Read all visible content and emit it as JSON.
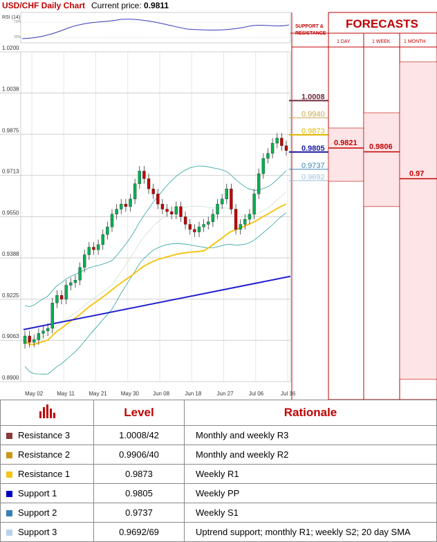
{
  "header": {
    "title": "USD/CHF Daily Chart",
    "price_label": "Current price:",
    "price_value": "0.9811"
  },
  "colors": {
    "accent": "#c00000",
    "bull": "#00b050",
    "bear": "#c00000",
    "sma20": "#f5c518",
    "sma200": "#1f1fd0",
    "bollinger": "#2aa0a0",
    "forecast_fill": "#fde4e6",
    "forecast_line": "#c00000"
  },
  "rsi": {
    "label": "RSI (14)",
    "levels": [
      "70%",
      "30%"
    ]
  },
  "chart_data": {
    "type": "candlestick",
    "ylim": [
      0.89,
      1.02
    ],
    "y_ticks": [
      "1.0200",
      "1.0038",
      "0.9875",
      "0.9713",
      "0.9550",
      "0.9388",
      "0.9225",
      "0.9063",
      "0.8900"
    ],
    "x_ticks": [
      "May 02",
      "May 11",
      "May 21",
      "May 30",
      "Jun 08",
      "Jun 18",
      "Jun 27",
      "Jul 06",
      "Jul 16"
    ],
    "close_series": [
      0.908,
      0.9055,
      0.9065,
      0.909,
      0.91,
      0.911,
      0.921,
      0.924,
      0.9225,
      0.928,
      0.929,
      0.93,
      0.935,
      0.94,
      0.943,
      0.942,
      0.944,
      0.948,
      0.951,
      0.956,
      0.958,
      0.96,
      0.959,
      0.962,
      0.968,
      0.973,
      0.97,
      0.966,
      0.964,
      0.96,
      0.958,
      0.957,
      0.956,
      0.959,
      0.955,
      0.952,
      0.95,
      0.949,
      0.951,
      0.952,
      0.953,
      0.956,
      0.96,
      0.962,
      0.966,
      0.958,
      0.95,
      0.952,
      0.954,
      0.956,
      0.964,
      0.972,
      0.978,
      0.98,
      0.984,
      0.986,
      0.983,
      0.9811
    ],
    "sr_labels": [
      {
        "value": 1.0008,
        "label": "1.0008",
        "color": "#6b2a3a"
      },
      {
        "value": 0.994,
        "label": "0.9940",
        "color": "#c9a64a"
      },
      {
        "value": 0.9873,
        "label": "0.9873",
        "color": "#e0b800"
      },
      {
        "value": 0.9805,
        "label": "0.9805",
        "color": "#1a1aa0"
      },
      {
        "value": 0.9737,
        "label": "0.9737",
        "color": "#3a7fb5"
      },
      {
        "value": 0.9692,
        "label": "0.9692",
        "color": "#9dc0d8"
      }
    ],
    "forecasts": [
      {
        "horizon": "1 DAY",
        "value": 0.9821,
        "label": "0.9821",
        "low": 0.969,
        "high": 0.99
      },
      {
        "horizon": "1 WEEK",
        "value": 0.9806,
        "label": "0.9806",
        "low": 0.959,
        "high": 0.996
      },
      {
        "horizon": "1 MONTH",
        "value": 0.97,
        "label": "0.97",
        "low": 0.891,
        "high": 1.016
      }
    ],
    "panel_titles": {
      "sr": "SUPPORT & RESISTANCE",
      "forecasts": "FORECASTS"
    }
  },
  "table": {
    "headers": [
      "Level",
      "Rationale"
    ],
    "rows": [
      {
        "name": "Resistance 3",
        "level": "1.0008/42",
        "rationale": "Monthly and weekly R3",
        "color": "#8b3a3a"
      },
      {
        "name": "Resistance 2",
        "level": "0.9906/40",
        "rationale": "Monthly and weekly R2",
        "color": "#c99a1a"
      },
      {
        "name": "Resistance 1",
        "level": "0.9873",
        "rationale": "Weekly R1",
        "color": "#f5c518"
      },
      {
        "name": "Support 1",
        "level": "0.9805",
        "rationale": "Weekly PP",
        "color": "#0000c0"
      },
      {
        "name": "Support 2",
        "level": "0.9737",
        "rationale": "Weekly S1",
        "color": "#3a7fb5"
      },
      {
        "name": "Support 3",
        "level": "0.9692/69",
        "rationale": "Uptrend support; monthly R1; weekly S2; 20 day SMA",
        "color": "#b9d3ea"
      }
    ]
  }
}
